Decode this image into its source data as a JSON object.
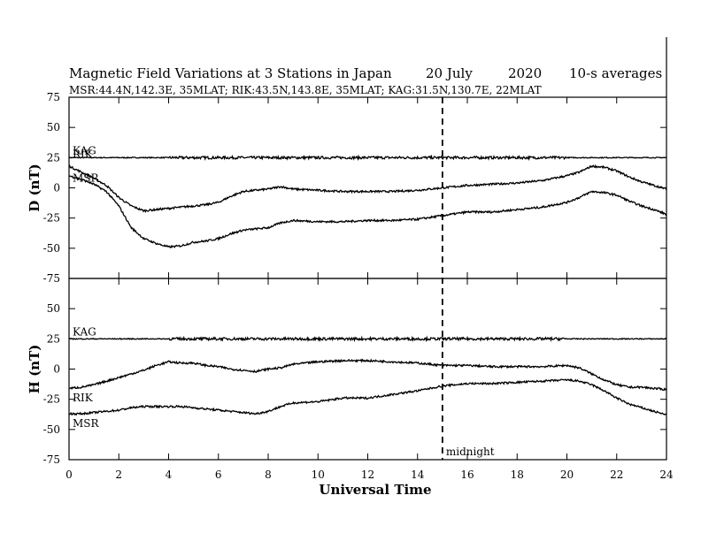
{
  "chart_data": {
    "type": "line",
    "title": "Magnetic Field Variations at 3 Stations in Japan",
    "date": "20 July",
    "year": "2020",
    "averaging": "10-s averages",
    "subtitle": "MSR:44.4N,142.3E, 35MLAT;  RIK:43.5N,143.8E, 35MLAT;  KAG:31.5N,130.7E, 22MLAT",
    "xlabel": "Universal Time",
    "xlim": [
      0,
      24
    ],
    "xticks": [
      0,
      2,
      4,
      6,
      8,
      10,
      12,
      14,
      16,
      18,
      20,
      22,
      24
    ],
    "annotation": {
      "text": "midnight",
      "x": 15
    },
    "grid": false,
    "panels": [
      {
        "ylabel": "D (nT)",
        "ylim": [
          -75,
          75
        ],
        "yticks": [
          75,
          50,
          25,
          0,
          -25,
          -50,
          -75
        ],
        "series": [
          {
            "name": "KAG",
            "x": [
              0,
              2,
              4,
              6,
              8,
              10,
              12,
              14,
              16,
              18,
              20,
              22,
              24
            ],
            "values": [
              25,
              25,
              25,
              25,
              25,
              25,
              25,
              25,
              25,
              25,
              25,
              25,
              25
            ]
          },
          {
            "name": "RIK",
            "x": [
              0,
              0.5,
              1,
              1.5,
              2,
              2.5,
              3,
              3.5,
              4,
              4.5,
              5,
              5.5,
              6,
              6.5,
              7,
              7.5,
              8,
              8.5,
              9,
              10,
              11,
              12,
              13,
              14,
              15,
              16,
              17,
              18,
              19,
              20,
              20.5,
              21,
              21.5,
              22,
              22.5,
              23,
              23.5,
              24
            ],
            "values": [
              18,
              13,
              8,
              2,
              -8,
              -15,
              -19,
              -18,
              -17,
              -16,
              -15,
              -14,
              -12,
              -7,
              -3,
              -2,
              -1,
              1,
              -1,
              -2,
              -3,
              -3,
              -3,
              -2,
              0,
              2,
              3,
              4,
              6,
              10,
              13,
              18,
              17,
              14,
              9,
              5,
              2,
              -1
            ]
          },
          {
            "name": "MSR",
            "x": [
              0,
              0.5,
              1,
              1.5,
              2,
              2.5,
              3,
              3.5,
              4,
              4.5,
              5,
              5.5,
              6,
              6.5,
              7,
              7.5,
              8,
              8.5,
              9,
              10,
              11,
              12,
              13,
              14,
              15,
              16,
              17,
              18,
              19,
              20,
              20.5,
              21,
              21.5,
              22,
              22.5,
              23,
              23.5,
              24
            ],
            "values": [
              10,
              7,
              3,
              -3,
              -15,
              -33,
              -42,
              -46,
              -49,
              -48,
              -45,
              -44,
              -42,
              -38,
              -35,
              -34,
              -33,
              -29,
              -27,
              -28,
              -28,
              -27,
              -27,
              -26,
              -23,
              -20,
              -20,
              -18,
              -16,
              -12,
              -8,
              -3,
              -4,
              -6,
              -11,
              -15,
              -18,
              -22
            ]
          }
        ]
      },
      {
        "ylabel": "H (nT)",
        "ylim": [
          -75,
          75
        ],
        "yticks": [
          75,
          50,
          25,
          0,
          -25,
          -50,
          -75
        ],
        "series": [
          {
            "name": "KAG",
            "x": [
              0,
              2,
              4,
              6,
              8,
              10,
              12,
              14,
              16,
              18,
              20,
              22,
              24
            ],
            "values": [
              25,
              25,
              25,
              25,
              25,
              25,
              25,
              25,
              25,
              25,
              25,
              25,
              25
            ]
          },
          {
            "name": "RIK",
            "x": [
              0,
              0.5,
              1,
              1.5,
              2,
              2.5,
              3,
              3.5,
              4,
              4.5,
              5,
              5.5,
              6,
              6.5,
              7,
              7.5,
              8,
              8.5,
              9,
              10,
              11,
              12,
              13,
              14,
              15,
              16,
              17,
              18,
              19,
              20,
              20.5,
              21,
              21.5,
              22,
              22.5,
              23,
              23.5,
              24
            ],
            "values": [
              -16,
              -15,
              -13,
              -10,
              -7,
              -4,
              -1,
              3,
              6,
              5,
              5,
              3,
              2,
              0,
              -1,
              -2,
              0,
              1,
              4,
              6,
              7,
              7,
              6,
              5,
              3,
              3,
              2,
              2,
              2,
              3,
              1,
              -4,
              -9,
              -13,
              -15,
              -15,
              -16,
              -17
            ]
          },
          {
            "name": "MSR",
            "x": [
              0,
              0.5,
              1,
              1.5,
              2,
              2.5,
              3,
              3.5,
              4,
              4.5,
              5,
              5.5,
              6,
              6.5,
              7,
              7.5,
              8,
              8.5,
              9,
              10,
              11,
              12,
              13,
              14,
              15,
              16,
              17,
              18,
              19,
              20,
              20.5,
              21,
              21.5,
              22,
              22.5,
              23,
              23.5,
              24
            ],
            "values": [
              -37,
              -37,
              -36,
              -35,
              -34,
              -32,
              -31,
              -31,
              -31,
              -31,
              -32,
              -33,
              -34,
              -35,
              -36,
              -37,
              -35,
              -31,
              -28,
              -27,
              -24,
              -24,
              -21,
              -18,
              -14,
              -12,
              -12,
              -11,
              -10,
              -9,
              -10,
              -13,
              -18,
              -24,
              -29,
              -32,
              -35,
              -38
            ]
          }
        ]
      }
    ]
  }
}
